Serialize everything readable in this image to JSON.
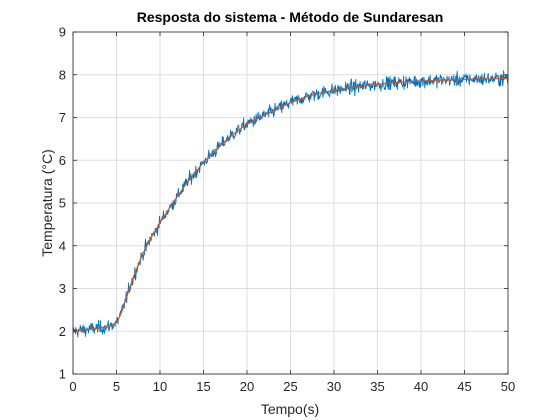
{
  "chart_data": {
    "type": "line",
    "title": "Resposta do sistema - Método de Sundaresan",
    "xlabel": "Tempo(s)",
    "ylabel": "Temperatura (°C)",
    "xlim": [
      0,
      50
    ],
    "ylim": [
      1,
      9
    ],
    "xticks": [
      0,
      5,
      10,
      15,
      20,
      25,
      30,
      35,
      40,
      45,
      50
    ],
    "yticks": [
      1,
      2,
      3,
      4,
      5,
      6,
      7,
      8,
      9
    ],
    "grid": true,
    "legend": "none",
    "series": [
      {
        "color": "#0072BD",
        "noisy": true,
        "x": [
          0,
          2,
          4,
          5,
          5.5,
          6,
          6.5,
          7,
          7.5,
          8,
          8.5,
          9,
          9.5,
          10,
          11,
          12,
          13,
          14,
          15,
          16,
          17,
          18,
          19,
          20,
          21,
          22,
          23,
          24,
          25,
          26,
          27,
          28,
          29,
          30,
          32,
          34,
          36,
          38,
          40,
          42,
          44,
          46,
          48,
          50
        ],
        "y": [
          2.0,
          2.05,
          2.1,
          2.2,
          2.4,
          2.7,
          3.0,
          3.3,
          3.55,
          3.8,
          4.0,
          4.2,
          4.35,
          4.55,
          4.85,
          5.15,
          5.45,
          5.7,
          5.95,
          6.15,
          6.35,
          6.55,
          6.7,
          6.85,
          6.95,
          7.05,
          7.15,
          7.25,
          7.35,
          7.42,
          7.5,
          7.55,
          7.6,
          7.63,
          7.7,
          7.75,
          7.8,
          7.83,
          7.85,
          7.87,
          7.88,
          7.9,
          7.9,
          7.92
        ]
      },
      {
        "color": "#D95319",
        "noisy": false,
        "x": [
          0,
          2,
          4,
          5,
          5.5,
          6,
          6.5,
          7,
          7.5,
          8,
          8.5,
          9,
          9.5,
          10,
          11,
          12,
          13,
          14,
          15,
          16,
          17,
          18,
          19,
          20,
          21,
          22,
          23,
          24,
          25,
          26,
          27,
          28,
          29,
          30,
          32,
          34,
          36,
          38,
          40,
          42,
          44,
          46,
          48,
          50
        ],
        "y": [
          2.0,
          2.05,
          2.1,
          2.2,
          2.4,
          2.7,
          3.0,
          3.3,
          3.55,
          3.8,
          4.0,
          4.2,
          4.35,
          4.55,
          4.85,
          5.15,
          5.45,
          5.7,
          5.95,
          6.15,
          6.35,
          6.55,
          6.7,
          6.85,
          6.95,
          7.05,
          7.15,
          7.25,
          7.35,
          7.42,
          7.5,
          7.55,
          7.6,
          7.63,
          7.7,
          7.75,
          7.8,
          7.83,
          7.85,
          7.87,
          7.88,
          7.9,
          7.9,
          7.92
        ]
      }
    ]
  }
}
